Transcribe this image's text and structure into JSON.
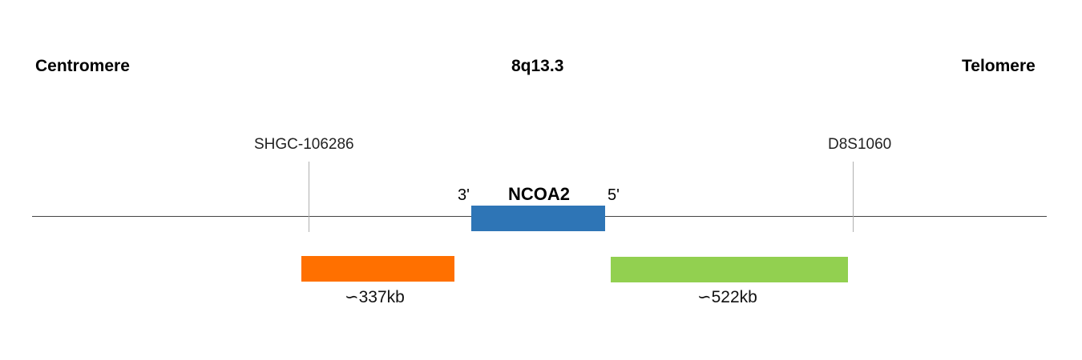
{
  "labels": {
    "left_end": "Centromere",
    "band": "8q13.3",
    "right_end": "Telomere"
  },
  "markers": [
    {
      "name": "SHGC-106286"
    },
    {
      "name": "D8S1060"
    }
  ],
  "gene": {
    "name": "NCOA2",
    "three_prime": "3'",
    "five_prime": "5'",
    "color": "#2E75B6"
  },
  "probes": [
    {
      "size": "∽337kb",
      "color": "#FF7000"
    },
    {
      "size": "∽522kb",
      "color": "#92D050"
    }
  ]
}
